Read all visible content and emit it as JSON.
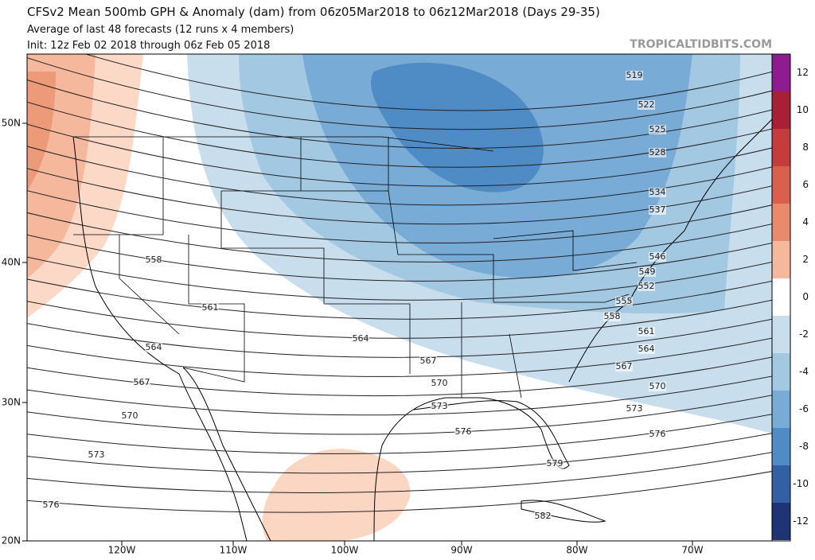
{
  "header": {
    "title": "CFSv2 Mean 500mb GPH & Anomaly (dam) from 06z05Mar2018 to 06z12Mar2018 (Days 29-35)",
    "subtitle": "Average of last 48 forecasts (12 runs x 4 members)",
    "init": "Init: 12z Feb 02 2018 through 06z Feb 05 2018",
    "watermark": "TROPICALTIDBITS.COM"
  },
  "map": {
    "lat_labels": [
      "50N",
      "40N",
      "30N",
      "20N"
    ],
    "lon_labels": [
      "120W",
      "110W",
      "100W",
      "90W",
      "80W",
      "70W"
    ],
    "contour_labels": [
      "519",
      "522",
      "525",
      "528",
      "534",
      "537",
      "546",
      "549",
      "552",
      "555",
      "558",
      "561",
      "564",
      "567",
      "570",
      "573",
      "576",
      "579",
      "582",
      "558",
      "561",
      "564",
      "567",
      "570",
      "573",
      "576",
      "564",
      "567",
      "570",
      "573",
      "576"
    ]
  },
  "colorbar": {
    "labels": [
      12,
      10,
      8,
      6,
      4,
      2,
      0,
      -2,
      -4,
      -6,
      -8,
      -10,
      -12
    ],
    "colors": [
      "#8e1c8e",
      "#a81f36",
      "#c43c3c",
      "#d8604c",
      "#e98a6c",
      "#f6b89c",
      "#ffffff",
      "#c8deed",
      "#a2c8e2",
      "#78abd5",
      "#4f8bc4",
      "#335fa4",
      "#1e3474"
    ]
  }
}
